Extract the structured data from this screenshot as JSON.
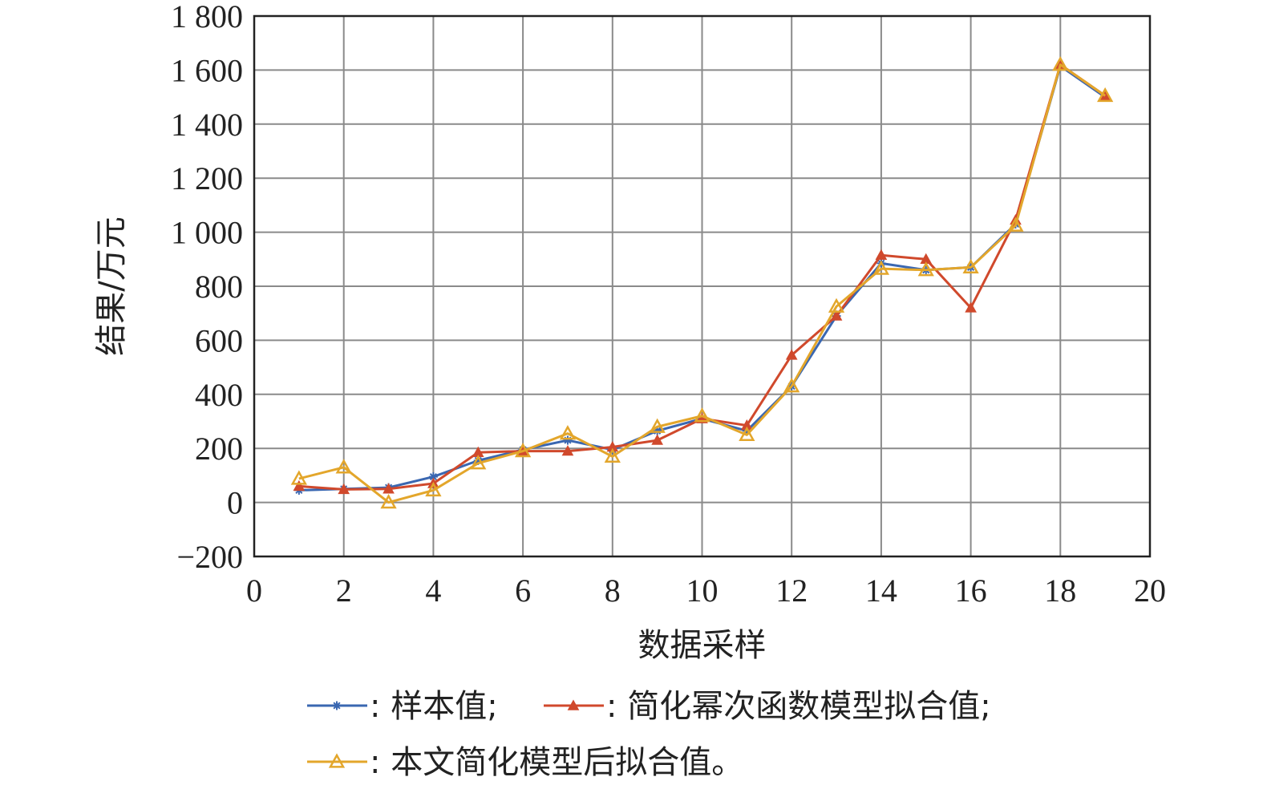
{
  "chart_data": {
    "type": "line",
    "xlabel": "数据采样",
    "ylabel": "结果/万元",
    "xlim": [
      0,
      20
    ],
    "ylim": [
      -200,
      1800
    ],
    "xticks": [
      0,
      2,
      4,
      6,
      8,
      10,
      12,
      14,
      16,
      18,
      20
    ],
    "xtick_labels": [
      "0",
      "2",
      "4",
      "6",
      "8",
      "10",
      "12",
      "14",
      "16",
      "18",
      "20"
    ],
    "yticks": [
      -200,
      0,
      200,
      400,
      600,
      800,
      1000,
      1200,
      1400,
      1600,
      1800
    ],
    "ytick_labels": [
      "−200",
      "0",
      "200",
      "400",
      "600",
      "800",
      "1 000",
      "1 200",
      "1 400",
      "1 600",
      "1 800"
    ],
    "grid": true,
    "legend_position": "bottom",
    "x": [
      1,
      2,
      3,
      4,
      5,
      6,
      7,
      8,
      9,
      10,
      11,
      12,
      13,
      14,
      15,
      16,
      17,
      18,
      19
    ],
    "series": [
      {
        "name": ": 样本值;",
        "color": "#3a67b1",
        "marker": "asterisk",
        "values": [
          45,
          50,
          55,
          95,
          155,
          195,
          230,
          195,
          265,
          310,
          265,
          430,
          690,
          885,
          860,
          870,
          1030,
          1615,
          1500
        ]
      },
      {
        "name": ": 简化幂次函数模型拟合值;",
        "color": "#d0492c",
        "marker": "triangle-filled",
        "values": [
          60,
          48,
          50,
          70,
          185,
          190,
          190,
          205,
          230,
          310,
          285,
          545,
          690,
          915,
          900,
          720,
          1045,
          1620,
          1505
        ]
      },
      {
        "name": ": 本文简化模型后拟合值。",
        "color": "#e3a62b",
        "marker": "triangle-open",
        "values": [
          88,
          130,
          0,
          45,
          145,
          190,
          255,
          170,
          280,
          320,
          250,
          430,
          725,
          865,
          860,
          870,
          1025,
          1620,
          1505
        ]
      }
    ]
  }
}
